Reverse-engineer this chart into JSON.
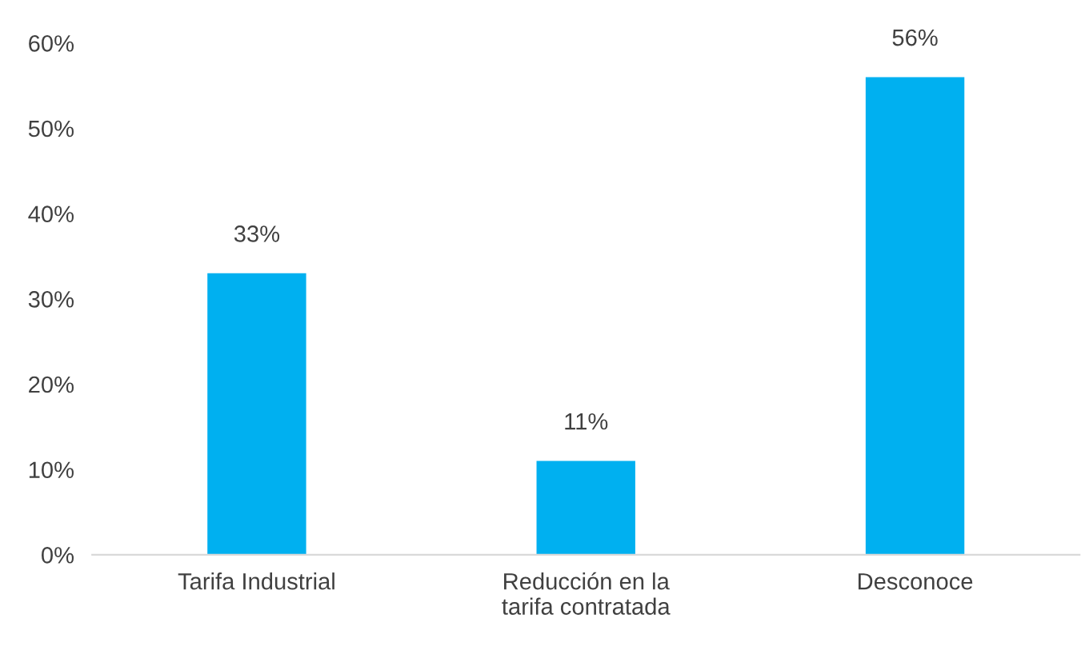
{
  "chart_data": {
    "type": "bar",
    "categories": [
      "Tarifa Industrial",
      "Reducción en la\ntarifa contratada",
      "Desconoce"
    ],
    "values": [
      33,
      11,
      56
    ],
    "color": "#00b0f0",
    "value_labels": [
      "33%",
      "11%",
      "56%"
    ],
    "ylim": [
      0,
      60
    ],
    "yticks": [
      {
        "value": 0,
        "label": "0%"
      },
      {
        "value": 10,
        "label": "10%"
      },
      {
        "value": 20,
        "label": "20%"
      },
      {
        "value": 30,
        "label": "30%"
      },
      {
        "value": 40,
        "label": "40%"
      },
      {
        "value": 50,
        "label": "50%"
      },
      {
        "value": 60,
        "label": "60%"
      }
    ],
    "grid": false,
    "legend": false
  }
}
